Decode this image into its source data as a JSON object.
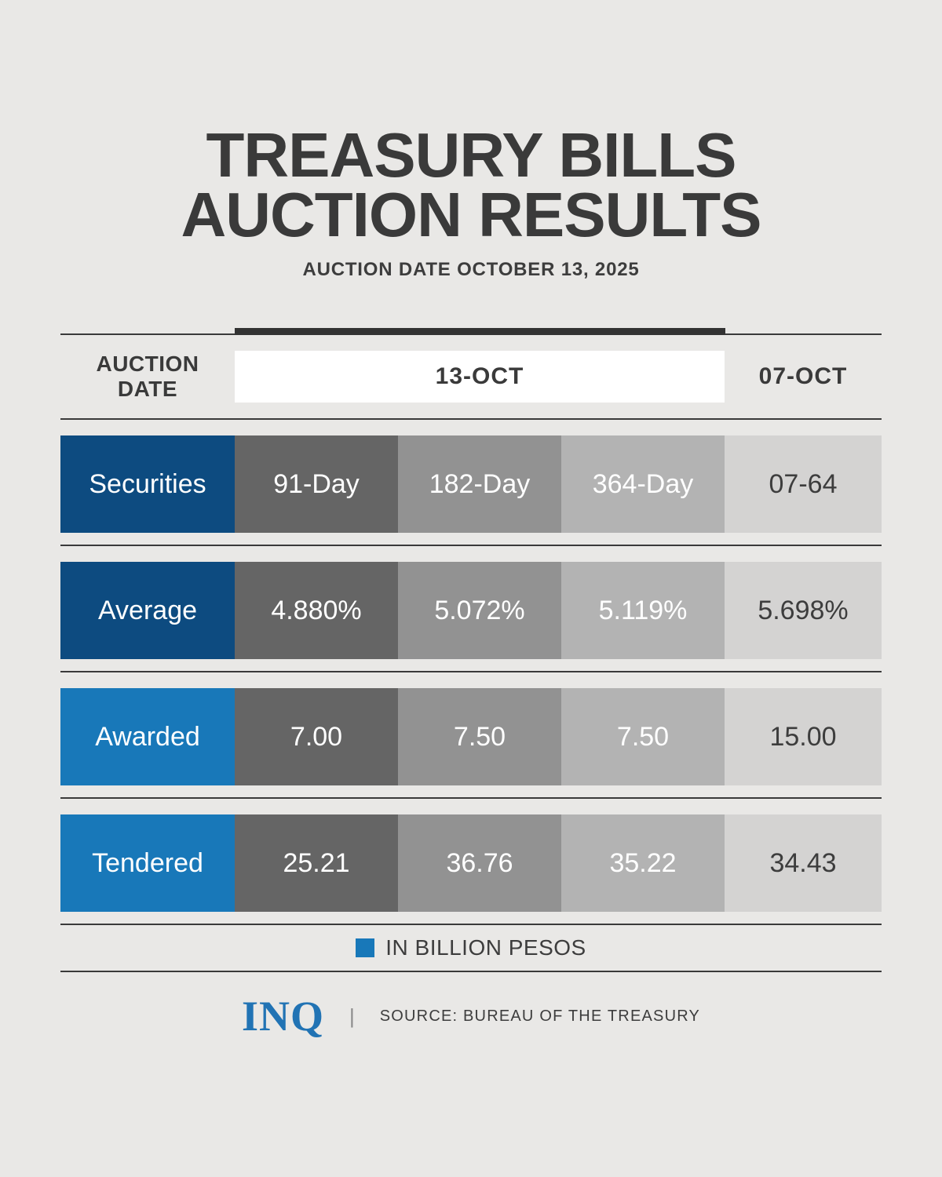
{
  "page": {
    "title_line1": "TREASURY BILLS",
    "title_line2": "AUCTION RESULTS",
    "subtitle": "AUCTION DATE OCTOBER 13, 2025"
  },
  "table": {
    "row_header": {
      "line1": "AUCTION",
      "line2": "DATE"
    },
    "current_auction_date": "13-OCT",
    "previous_auction_date": "07-OCT",
    "rows": [
      {
        "label": "Securities",
        "values": [
          "91-Day",
          "182-Day",
          "364-Day",
          "07-64"
        ]
      },
      {
        "label": "Average",
        "values": [
          "4.880%",
          "5.072%",
          "5.119%",
          "5.698%"
        ]
      },
      {
        "label": "Awarded",
        "values": [
          "7.00",
          "7.50",
          "7.50",
          "15.00"
        ]
      },
      {
        "label": "Tendered",
        "values": [
          "25.21",
          "36.76",
          "35.22",
          "34.43"
        ]
      }
    ]
  },
  "legend": {
    "label": "IN BILLION PESOS"
  },
  "footer": {
    "logo_text": "INQ",
    "separator": "|",
    "source": "SOURCE: BUREAU OF THE TREASURY"
  },
  "colors": {
    "background": "#e9e8e6",
    "text_dark": "#3a3a3a",
    "navy_blue": "#0d4b80",
    "bright_blue": "#1878b9",
    "legend_square": "#1878b9",
    "col_91day_gray": "#656565",
    "col_182day_gray": "#929292",
    "col_364day_gray": "#b3b3b3",
    "col_prev_gray": "#d4d3d2",
    "chip_white": "#ffffff",
    "logo_blue": "#2173b4"
  },
  "chart_data": {
    "type": "table",
    "title": "TREASURY BILLS AUCTION RESULTS",
    "subtitle": "AUCTION DATE OCTOBER 13, 2025",
    "auction_dates": [
      "13-OCT",
      "07-OCT"
    ],
    "categories": [
      "91-Day (13-OCT)",
      "182-Day (13-OCT)",
      "364-Day (13-OCT)",
      "07-64 (07-OCT)"
    ],
    "series": [
      {
        "name": "Average rate (%)",
        "values": [
          4.88,
          5.072,
          5.119,
          5.698
        ]
      },
      {
        "name": "Awarded",
        "values": [
          7.0,
          7.5,
          7.5,
          15.0
        ]
      },
      {
        "name": "Tendered",
        "values": [
          25.21,
          36.76,
          35.22,
          34.43
        ]
      }
    ],
    "unit_note": "IN BILLION PESOS",
    "source": "SOURCE: BUREAU OF THE TREASURY"
  }
}
